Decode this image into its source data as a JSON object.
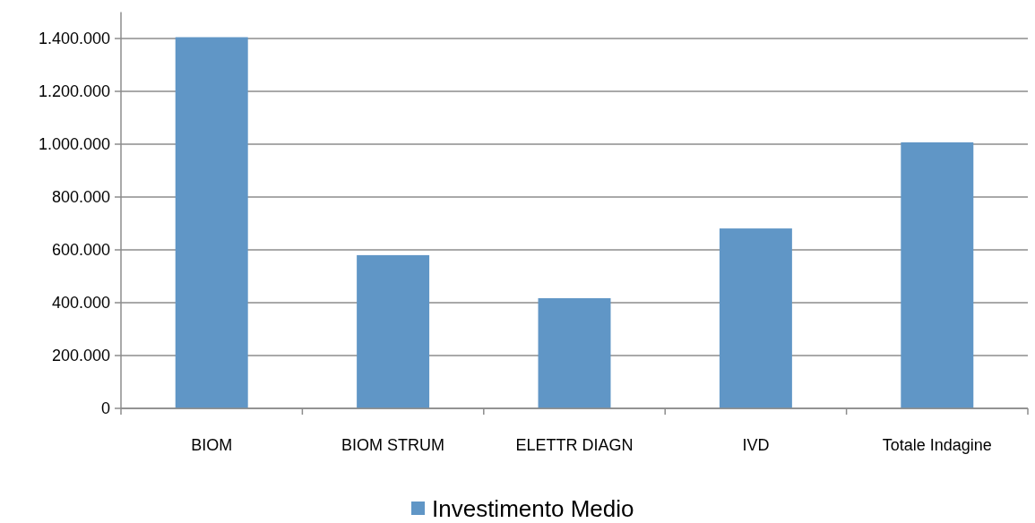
{
  "chart_data": {
    "type": "bar",
    "categories": [
      "BIOM",
      "BIOM STRUM",
      "ELETTR DIAGN",
      "IVD",
      "Totale Indagine"
    ],
    "series": [
      {
        "name": "Investimento Medio",
        "color": "#6096c6",
        "values": [
          1405000,
          580000,
          417000,
          681000,
          1007000
        ]
      }
    ],
    "ylim": [
      0,
      1500000
    ],
    "yticks": [
      0,
      {
        "value": 200000,
        "label": "200.000"
      },
      {
        "value": 400000,
        "label": "400.000"
      },
      {
        "value": 600000,
        "label": "600.000"
      },
      {
        "value": 800000,
        "label": "800.000"
      },
      {
        "value": 1000000,
        "label": "1.000.000"
      },
      {
        "value": 1200000,
        "label": "1.200.000"
      },
      {
        "value": 1400000,
        "label": "1.400.000"
      }
    ],
    "grid": "y",
    "legend": "bottom"
  }
}
